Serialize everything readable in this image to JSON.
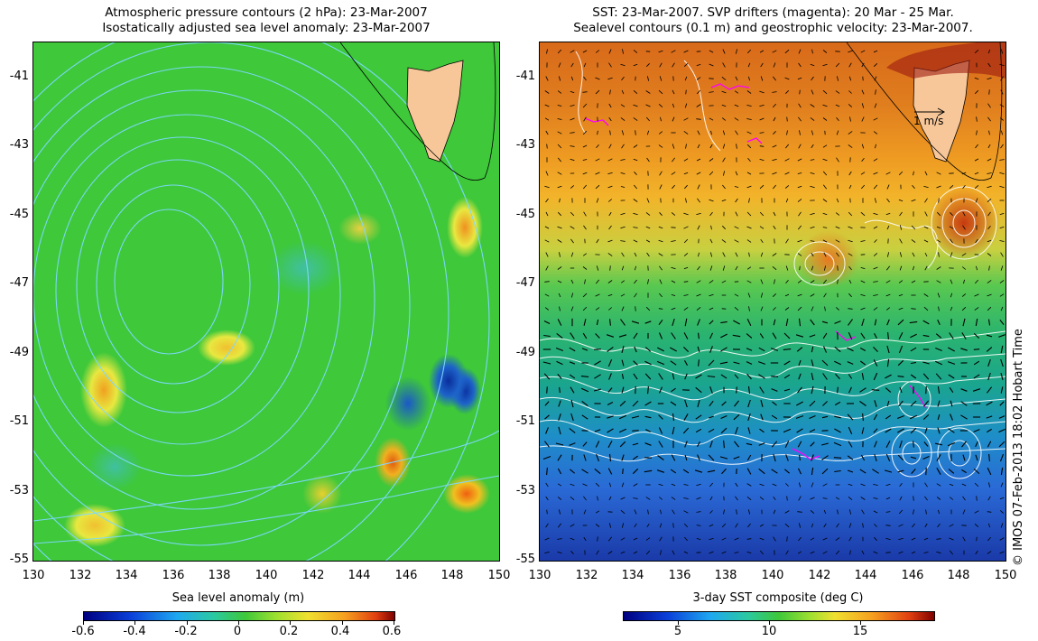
{
  "left_map": {
    "title_line1": "Atmospheric pressure contours (2 hPa): 23-Mar-2007",
    "title_line2": "Isostatically adjusted sea level anomaly: 23-Mar-2007",
    "colorbar_title": "Sea level anomaly (m)",
    "colorbar_ticks": [
      "-0.6",
      "-0.4",
      "-0.2",
      "0",
      "0.2",
      "0.4",
      "0.6"
    ],
    "colorbar_range": [
      -0.6,
      0.6
    ]
  },
  "right_map": {
    "title_line1": "SST: 23-Mar-2007. SVP drifters (magenta): 20 Mar - 25 Mar.",
    "title_line2": "Sealevel contours (0.1 m) and geostrophic velocity: 23-Mar-2007.",
    "colorbar_title": "3-day SST composite (deg C)",
    "colorbar_ticks": [
      "5",
      "10",
      "15"
    ],
    "colorbar_range": [
      2,
      19
    ],
    "velocity_scale_label": "1 m/s"
  },
  "axes": {
    "longitude_ticks": [
      "130",
      "132",
      "134",
      "136",
      "138",
      "140",
      "142",
      "144",
      "146",
      "148",
      "150"
    ],
    "latitude_ticks": [
      "-41",
      "-43",
      "-45",
      "-47",
      "-49",
      "-51",
      "-53",
      "-55"
    ],
    "longitude_range": [
      130,
      150
    ],
    "latitude_range": [
      -55,
      -40
    ]
  },
  "credit": "© IMOS 07-Feb-2013 18:02 Hobart Time",
  "colors": {
    "land": "#f7c79a",
    "pressure_contours": "#7fd8ff",
    "sealevel_contours": "#ffffff",
    "drifter_tracks": "#ff00ff",
    "velocity_arrows": "#000000"
  }
}
